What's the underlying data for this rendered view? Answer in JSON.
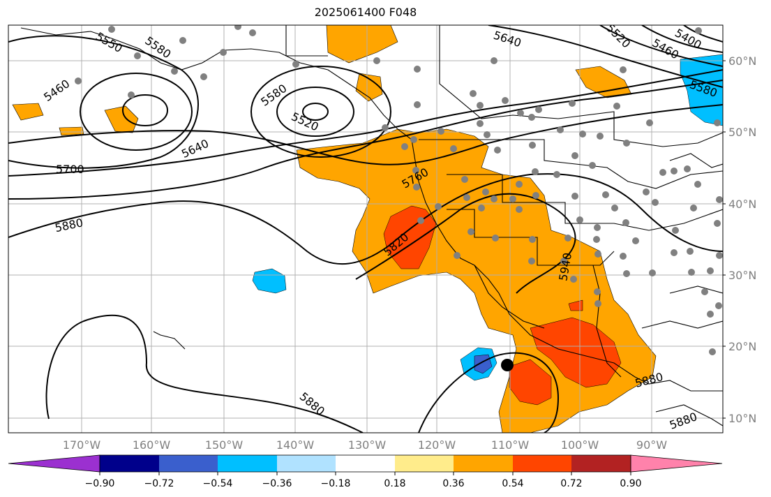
{
  "title": "2025061400 F048",
  "lat_labels": [
    "60°N",
    "50°N",
    "40°N",
    "30°N",
    "20°N",
    "10°N"
  ],
  "lon_labels": [
    "170°W",
    "160°W",
    "150°W",
    "140°W",
    "130°W",
    "120°W",
    "110°W",
    "100°W",
    "90°W"
  ],
  "colorbar": {
    "ticks": [
      "−0.90",
      "−0.72",
      "−0.54",
      "−0.36",
      "−0.18",
      "0.18",
      "0.36",
      "0.54",
      "0.72",
      "0.90"
    ],
    "colors": [
      "#9b30d0",
      "#00008b",
      "#3a5fcd",
      "#00bfff",
      "#b0e2ff",
      "#ffffff",
      "#ffec8b",
      "#ffa500",
      "#ff4500",
      "#b22222",
      "#ff82ab"
    ]
  },
  "contour_labels": [
    "5550",
    "5580",
    "5460",
    "5580",
    "5520",
    "5640",
    "5520",
    "5460",
    "5400",
    "5580",
    "5640",
    "5700",
    "5760",
    "5880",
    "5820",
    "5940",
    "5880",
    "5880",
    "5880"
  ],
  "colors": {
    "orange": "#ffa500",
    "red_orange": "#ff4500",
    "light_blue": "#00bfff",
    "mid_blue": "#3a5fcd",
    "station_dot": "#808080",
    "grid": "#b0b0b0"
  }
}
